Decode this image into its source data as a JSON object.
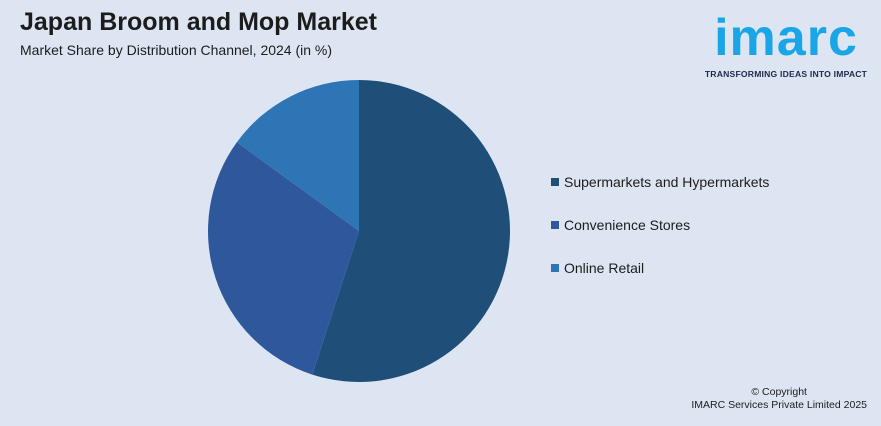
{
  "chart_data": {
    "type": "pie",
    "title": "Japan Broom and Mop Market",
    "subtitle": "Market Share by Distribution Channel, 2024 (in %)",
    "slices": [
      {
        "name": "Supermarkets and Hypermarkets",
        "value": 55,
        "color": "#1f4e79"
      },
      {
        "name": "Convenience Stores",
        "value": 30,
        "color": "#2e579c"
      },
      {
        "name": "Online Retail",
        "value": 15,
        "color": "#2e75b6"
      }
    ],
    "legend_position": "right"
  },
  "logo": {
    "word": "imarc",
    "tagline": "TRANSFORMING IDEAS INTO IMPACT"
  },
  "footer": {
    "copyright_line1": "© Copyright",
    "copyright_line2": "IMARC Services Private Limited 2025"
  }
}
